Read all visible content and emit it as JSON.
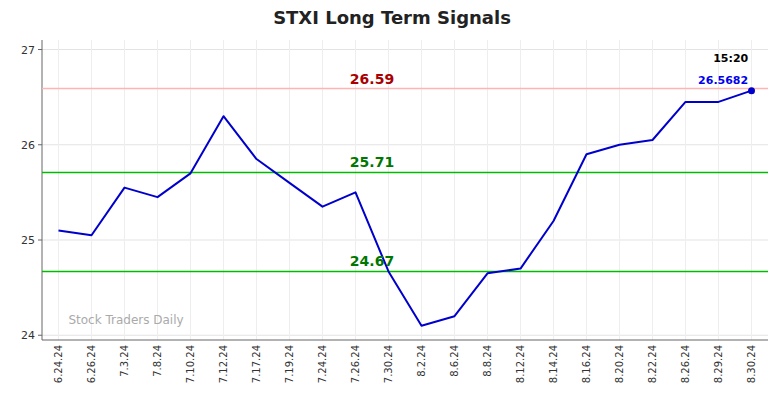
{
  "chart_data": {
    "type": "line",
    "title": "STXI Long Term Signals",
    "categories": [
      "6.24.24",
      "6.26.24",
      "7.3.24",
      "7.8.24",
      "7.10.24",
      "7.12.24",
      "7.17.24",
      "7.19.24",
      "7.24.24",
      "7.26.24",
      "7.30.24",
      "8.2.24",
      "8.6.24",
      "8.8.24",
      "8.12.24",
      "8.14.24",
      "8.16.24",
      "8.20.24",
      "8.22.24",
      "8.26.24",
      "8.29.24",
      "8.30.24"
    ],
    "values": [
      25.1,
      25.05,
      25.55,
      25.45,
      25.7,
      26.3,
      25.85,
      25.6,
      25.35,
      25.5,
      24.67,
      24.1,
      24.2,
      24.65,
      24.7,
      25.2,
      25.9,
      26.0,
      26.05,
      26.45,
      26.45,
      26.5682
    ],
    "color": "#0000cc",
    "marker": "end-dot",
    "reference_lines": [
      {
        "value": 26.59,
        "label": "26.59",
        "color": "#ffb3b3",
        "label_color": "#aa0000"
      },
      {
        "value": 25.71,
        "label": "25.71",
        "color": "#00bb00",
        "label_color": "#007700"
      },
      {
        "value": 24.67,
        "label": "24.67",
        "color": "#00bb00",
        "label_color": "#007700"
      }
    ],
    "annotations": [
      {
        "text": "15:20",
        "color": "#000000"
      },
      {
        "text": "26.5682",
        "color": "#0000ee"
      }
    ],
    "watermark": {
      "text": "Stock Traders Daily",
      "color": "#aaaaaa"
    },
    "ylim": [
      23.95,
      27.1
    ],
    "yticks": [
      24,
      25,
      26,
      27
    ],
    "grid": true
  }
}
